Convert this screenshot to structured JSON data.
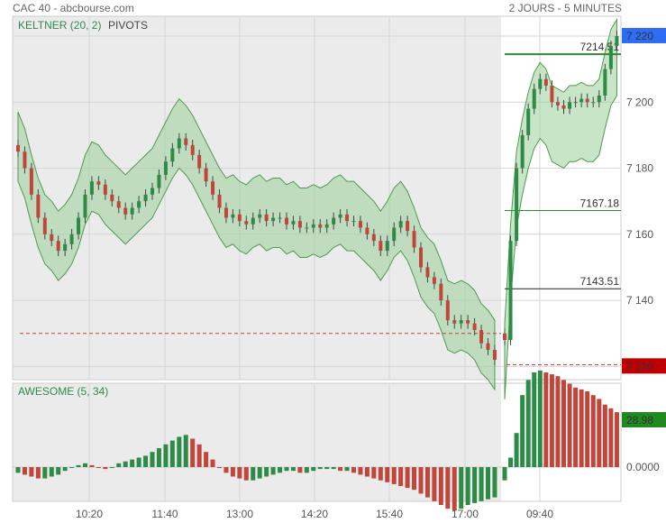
{
  "header": {
    "title": "CAC 40 - abcbourse.com",
    "period": "2 JOURS - 5 MINUTES"
  },
  "indicators": {
    "price_overlay": "KELTNER (20, 2)",
    "pivots": "PIVOTS",
    "oscillator": "AWESOME (5, 34)"
  },
  "colors": {
    "up": "#2e8b47",
    "down": "#c0453a",
    "band_fill": "#9ccf9a",
    "band_line": "#4f9a4f",
    "pivot_line": "#2e8b2e",
    "price_badge": "#2d6df6",
    "low_badge": "#c00000",
    "ao_badge": "#1f8a1f",
    "history_bg": "#ebebeb"
  },
  "chart_data": [
    {
      "type": "candlestick",
      "title": "CAC 40",
      "x_tick_labels": [
        "10:20",
        "11:40",
        "13:00",
        "14:20",
        "15:40",
        "17:00",
        "09:40"
      ],
      "y_tick_labels": [
        "7 220",
        "7 200",
        "7 180",
        "7 160",
        "7 140",
        "7 120"
      ],
      "ylim": [
        7116,
        7226
      ],
      "grid": true,
      "current_price": "7 220",
      "previous_day_low": "7 120",
      "previous_day_low_marker": 7130,
      "pivot_levels": [
        {
          "label": "7214.51",
          "value": 7214.51
        },
        {
          "label": "7167.18",
          "value": 7167.18
        },
        {
          "label": "7143.51",
          "value": 7143.51
        }
      ],
      "days": [
        {
          "segment": "previous_session",
          "closes": [
            7185,
            7180,
            7172,
            7165,
            7160,
            7158,
            7155,
            7157,
            7160,
            7165,
            7172,
            7176,
            7175,
            7172,
            7170,
            7168,
            7166,
            7168,
            7170,
            7172,
            7174,
            7178,
            7182,
            7186,
            7189,
            7187,
            7184,
            7180,
            7176,
            7172,
            7168,
            7165,
            7166,
            7164,
            7163,
            7165,
            7166,
            7164,
            7165,
            7165,
            7163,
            7164,
            7162,
            7162,
            7163,
            7162,
            7163,
            7165,
            7166,
            7164,
            7164,
            7162,
            7160,
            7158,
            7155,
            7158,
            7162,
            7164,
            7161,
            7156,
            7150,
            7147,
            7145,
            7140,
            7134,
            7133,
            7134,
            7133,
            7131,
            7127,
            7125,
            7122
          ]
        },
        {
          "segment": "current_session",
          "closes": [
            7128,
            7158,
            7180,
            7190,
            7198,
            7204,
            7207,
            7205,
            7200,
            7199,
            7198,
            7200,
            7200,
            7201,
            7200,
            7200,
            7202,
            7210,
            7217,
            7220
          ]
        }
      ]
    },
    {
      "type": "histogram",
      "title": "AWESOME (5, 34)",
      "y_tick_labels": [
        "0.0000"
      ],
      "last_value": "28.98",
      "days": [
        {
          "segment": "previous_session",
          "values": [
            -3,
            -4,
            -5,
            -6,
            -6,
            -5,
            -4,
            -2,
            0,
            1,
            2,
            1,
            0,
            -1,
            0,
            2,
            3,
            4,
            5,
            6,
            8,
            10,
            12,
            14,
            16,
            17,
            15,
            12,
            8,
            4,
            0,
            -3,
            -5,
            -6,
            -7,
            -7,
            -6,
            -5,
            -4,
            -3,
            -2,
            -2,
            -3,
            -3,
            -2,
            -1,
            -1,
            -1,
            -2,
            -2,
            -3,
            -4,
            -5,
            -6,
            -7,
            -8,
            -9,
            -10,
            -11,
            -12,
            -14,
            -16,
            -18,
            -20,
            -22,
            -23,
            -22,
            -20,
            -19,
            -18,
            -17,
            -16
          ]
        },
        {
          "segment": "current_session",
          "values": [
            -7,
            5,
            18,
            38,
            46,
            50,
            51,
            50,
            49,
            48,
            46,
            44,
            42,
            41,
            40,
            38,
            36,
            33,
            31,
            29
          ]
        }
      ]
    }
  ]
}
